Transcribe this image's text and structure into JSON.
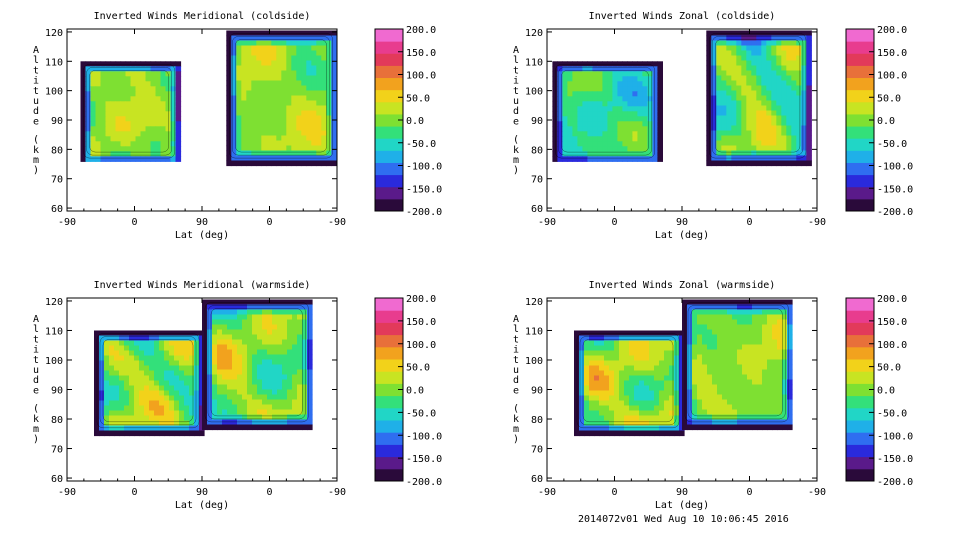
{
  "chart_data": [
    {
      "type": "contour",
      "title": "Inverted Winds Meridional (coldside)",
      "xlabel": "Lat (deg)",
      "ylabel": "Altitude (km)",
      "x_ticks": [
        "-90",
        "0",
        "90",
        "0",
        "-90"
      ],
      "y_ticks": [
        60,
        70,
        80,
        90,
        100,
        110,
        120
      ],
      "ylim": [
        59,
        121
      ],
      "color_range": [
        -200,
        200
      ],
      "colorbar_ticks": [
        "200.0",
        "150.0",
        "100.0",
        "50.0",
        "0.0",
        "-50.0",
        "-100.0",
        "-150.0",
        "-200.0"
      ],
      "regions": [
        {
          "x_range": [
            "-75",
            "65"
          ],
          "alt_range": [
            76,
            110
          ],
          "approx_peak": 60,
          "approx_min": -40
        },
        {
          "x_range": [
            "110",
            "-85"
          ],
          "alt_range": [
            76,
            121
          ],
          "approx_peak": 60,
          "approx_min": -40
        }
      ]
    },
    {
      "type": "contour",
      "title": "Inverted Winds Zonal (coldside)",
      "xlabel": "Lat (deg)",
      "ylabel": "Altitude (km)",
      "x_ticks": [
        "-90",
        "0",
        "90",
        "0",
        "-90"
      ],
      "y_ticks": [
        60,
        70,
        80,
        90,
        100,
        110,
        120
      ],
      "ylim": [
        59,
        121
      ],
      "color_range": [
        -200,
        200
      ],
      "colorbar_ticks": [
        "200.0",
        "150.0",
        "100.0",
        "50.0",
        "0.0",
        "-50.0",
        "-100.0",
        "-150.0",
        "-200.0"
      ],
      "regions": [
        {
          "x_range": [
            "-75",
            "65"
          ],
          "alt_range": [
            76,
            110
          ],
          "approx_peak": 20,
          "approx_min": -90
        },
        {
          "x_range": [
            "110",
            "-85"
          ],
          "alt_range": [
            76,
            121
          ],
          "approx_peak": 80,
          "approx_min": -110
        }
      ]
    },
    {
      "type": "contour",
      "title": "Inverted Winds Meridional (warmside)",
      "xlabel": "Lat (deg)",
      "ylabel": "Altitude (km)",
      "x_ticks": [
        "-90",
        "0",
        "90",
        "0",
        "-90"
      ],
      "y_ticks": [
        60,
        70,
        80,
        90,
        100,
        110,
        120
      ],
      "ylim": [
        59,
        121
      ],
      "color_range": [
        -200,
        200
      ],
      "colorbar_ticks": [
        "200.0",
        "150.0",
        "100.0",
        "50.0",
        "0.0",
        "-50.0",
        "-100.0",
        "-150.0",
        "-200.0"
      ],
      "regions": [
        {
          "x_range": [
            "-60",
            "90"
          ],
          "alt_range": [
            76,
            110
          ],
          "approx_peak": 90,
          "approx_min": -90
        },
        {
          "x_range": [
            "90",
            "-65"
          ],
          "alt_range": [
            78,
            121
          ],
          "approx_peak": 80,
          "approx_min": -70
        }
      ]
    },
    {
      "type": "contour",
      "title": "Inverted Winds Zonal (warmside)",
      "xlabel": "Lat (deg)",
      "ylabel": "Altitude (km)",
      "x_ticks": [
        "-90",
        "0",
        "90",
        "0",
        "-90"
      ],
      "y_ticks": [
        60,
        70,
        80,
        90,
        100,
        110,
        120
      ],
      "ylim": [
        59,
        121
      ],
      "color_range": [
        -200,
        200
      ],
      "colorbar_ticks": [
        "200.0",
        "150.0",
        "100.0",
        "50.0",
        "0.0",
        "-50.0",
        "-100.0",
        "-150.0",
        "-200.0"
      ],
      "regions": [
        {
          "x_range": [
            "-60",
            "90"
          ],
          "alt_range": [
            76,
            110
          ],
          "approx_peak": 90,
          "approx_min": -60
        },
        {
          "x_range": [
            "90",
            "-65"
          ],
          "alt_range": [
            78,
            121
          ],
          "approx_peak": 60,
          "approx_min": -40
        }
      ]
    }
  ],
  "colormap": [
    "#2a0a3a",
    "#5a1a8a",
    "#2a2adc",
    "#2f6ef0",
    "#1fb0e8",
    "#21d6c6",
    "#33e07a",
    "#7ee032",
    "#c8e422",
    "#f2d21a",
    "#f2a21e",
    "#e8703a",
    "#e23a5a",
    "#e83c8e",
    "#f06ad0"
  ],
  "footer": "2014072v01 Wed Aug 10 10:06:45 2016"
}
